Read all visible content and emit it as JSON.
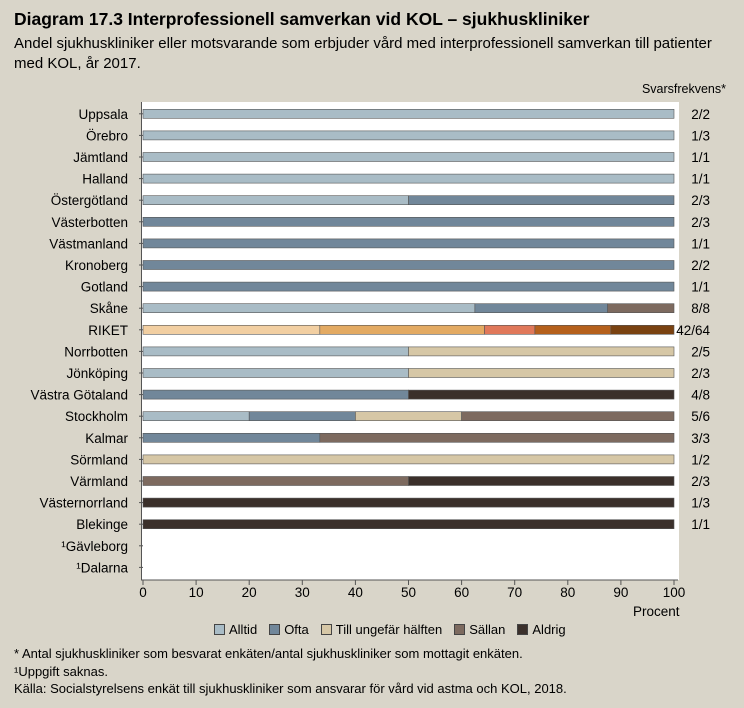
{
  "title": "Diagram 17.3 Interprofessionell samverkan vid KOL – sjukhuskliniker",
  "subtitle": "Andel sjukhuskliniker eller motsvarande som erbjuder vård med interprofessionell samverkan till patienter med KOL, år 2017.",
  "freq_header": "Svarsfrekvens*",
  "footnotes": [
    "* Antal sjukhuskliniker som besvarat enkäten/antal sjukhuskliniker som mottagit enkäten.",
    "¹Uppgift saknas.",
    "Källa:  Socialstyrelsens enkät till sjukhuskliniker som ansvarar för vård vid astma och KOL, 2018."
  ],
  "colors": {
    "Alltid": "#a9bcc6",
    "Ofta": "#71879a",
    "Till ungefär hälften": "#d6c7a6",
    "Sällan": "#7d6a5f",
    "Aldrig": "#3b302b",
    "riket": [
      "#f2cfa2",
      "#e3aa63",
      "#e0785a",
      "#b5601c",
      "#7a4211"
    ]
  },
  "chart_data": {
    "type": "bar",
    "orientation": "horizontal",
    "stacked": true,
    "title": "Diagram 17.3 Interprofessionell samverkan vid KOL – sjukhuskliniker",
    "xlabel": "Procent",
    "xlim": [
      0,
      100
    ],
    "xticks": [
      0,
      10,
      20,
      30,
      40,
      50,
      60,
      70,
      80,
      90,
      100
    ],
    "legend": [
      "Alltid",
      "Ofta",
      "Till ungefär hälften",
      "Sällan",
      "Aldrig"
    ],
    "legend_position": "bottom",
    "categories": [
      "Uppsala",
      "Örebro",
      "Jämtland",
      "Halland",
      "Östergötland",
      "Västerbotten",
      "Västmanland",
      "Kronoberg",
      "Gotland",
      "Skåne",
      "RIKET",
      "Norrbotten",
      "Jönköping",
      "Västra Götaland",
      "Stockholm",
      "Kalmar",
      "Sörmland",
      "Värmland",
      "Västernorrland",
      "Blekinge",
      "¹Gävleborg",
      "¹Dalarna"
    ],
    "response_rate": [
      "2/2",
      "1/3",
      "1/1",
      "1/1",
      "2/3",
      "2/3",
      "1/1",
      "2/2",
      "1/1",
      "8/8",
      "42/64",
      "2/5",
      "2/3",
      "4/8",
      "5/6",
      "3/3",
      "1/2",
      "2/3",
      "1/3",
      "1/1",
      "",
      ""
    ],
    "series": [
      {
        "name": "Alltid",
        "values": [
          100,
          100,
          100,
          100,
          50,
          0,
          0,
          0,
          0,
          62.5,
          33.3,
          50,
          50,
          0,
          20,
          0,
          0,
          0,
          0,
          0,
          0,
          0
        ]
      },
      {
        "name": "Ofta",
        "values": [
          0,
          0,
          0,
          0,
          50,
          100,
          100,
          100,
          100,
          25,
          31,
          0,
          0,
          50,
          20,
          33.3,
          0,
          0,
          0,
          0,
          0,
          0
        ]
      },
      {
        "name": "Till ungefär hälften",
        "values": [
          0,
          0,
          0,
          0,
          0,
          0,
          0,
          0,
          0,
          0,
          9.5,
          50,
          50,
          0,
          20,
          0,
          100,
          0,
          0,
          0,
          0,
          0
        ]
      },
      {
        "name": "Sällan",
        "values": [
          0,
          0,
          0,
          0,
          0,
          0,
          0,
          0,
          0,
          12.5,
          14.3,
          0,
          0,
          0,
          40,
          66.7,
          0,
          50,
          0,
          0,
          0,
          0
        ]
      },
      {
        "name": "Aldrig",
        "values": [
          0,
          0,
          0,
          0,
          0,
          0,
          0,
          0,
          0,
          0,
          11.9,
          0,
          0,
          50,
          0,
          0,
          0,
          50,
          100,
          100,
          0,
          0
        ]
      }
    ]
  }
}
